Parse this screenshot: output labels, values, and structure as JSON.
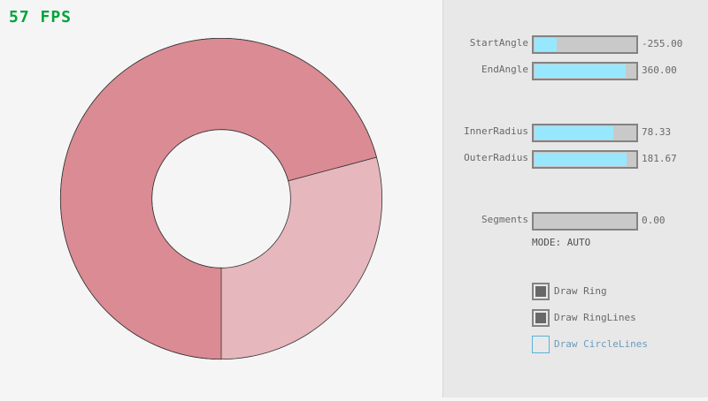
{
  "fps": "57 FPS",
  "ring": {
    "start_angle": -255,
    "end_angle": 360,
    "inner_radius": 78.33,
    "outer_radius": 181.67,
    "color": "#be2137",
    "alpha": 0.3
  },
  "sliders": [
    {
      "label": "StartAngle",
      "value": "-255.00",
      "fraction": 0.217
    },
    {
      "label": "EndAngle",
      "value": "360.00",
      "fraction": 0.9
    },
    {
      "label": "InnerRadius",
      "value": "78.33",
      "fraction": 0.783
    },
    {
      "label": "OuterRadius",
      "value": "181.67",
      "fraction": 0.908
    },
    {
      "label": "Segments",
      "value": "0.00",
      "fraction": 0
    }
  ],
  "mode": "MODE: AUTO",
  "checkboxes": [
    {
      "label": "Draw Ring",
      "checked": true
    },
    {
      "label": "Draw RingLines",
      "checked": true
    },
    {
      "label": "Draw CircleLines",
      "checked": false
    }
  ]
}
